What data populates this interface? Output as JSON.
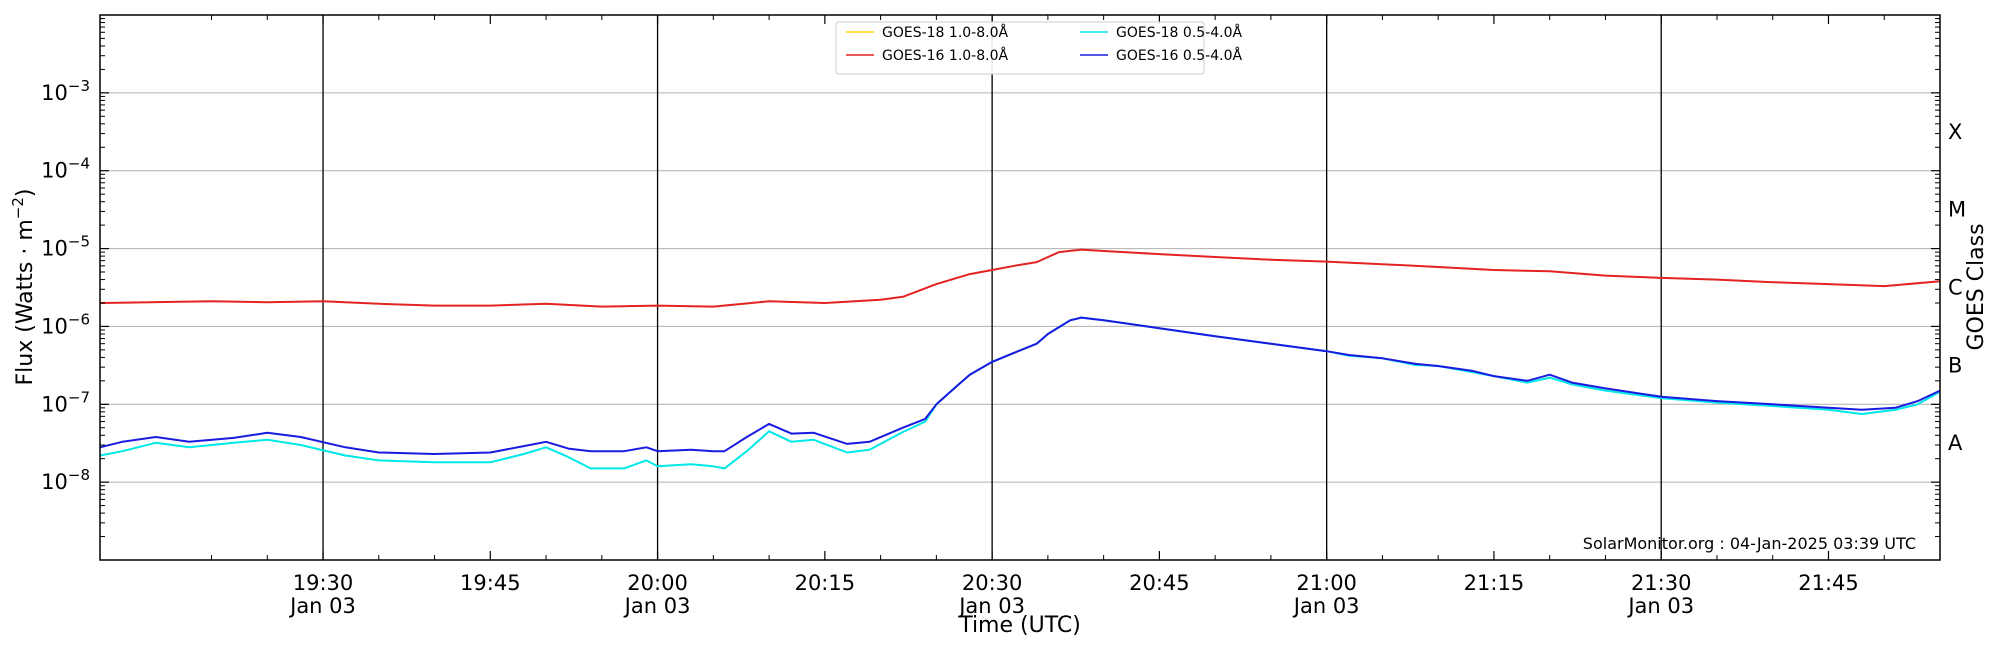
{
  "chart_data": {
    "type": "line",
    "xlabel": "Time (UTC)",
    "ylabel": "Flux (Watts · m",
    "ylabel_exp": "−2",
    "ylabel_end": ")",
    "right_label": "GOES Class",
    "xlim": [
      "19:10",
      "21:55"
    ],
    "ylim": [
      1e-09,
      0.01
    ],
    "yscale": "log",
    "y_ticks": [
      {
        "value": 1e-08,
        "base": "10",
        "exp": "−8"
      },
      {
        "value": 1e-07,
        "base": "10",
        "exp": "−7"
      },
      {
        "value": 1e-06,
        "base": "10",
        "exp": "−6"
      },
      {
        "value": 1e-05,
        "base": "10",
        "exp": "−5"
      },
      {
        "value": 0.0001,
        "base": "10",
        "exp": "−4"
      },
      {
        "value": 0.001,
        "base": "10",
        "exp": "−3"
      }
    ],
    "x_ticks": [
      {
        "time": "19:30",
        "label": "19:30",
        "sub": "Jan 03",
        "major": true
      },
      {
        "time": "19:45",
        "label": "19:45",
        "sub": "",
        "major": false
      },
      {
        "time": "20:00",
        "label": "20:00",
        "sub": "Jan 03",
        "major": true
      },
      {
        "time": "20:15",
        "label": "20:15",
        "sub": "",
        "major": false
      },
      {
        "time": "20:30",
        "label": "20:30",
        "sub": "Jan 03",
        "major": true
      },
      {
        "time": "20:45",
        "label": "20:45",
        "sub": "",
        "major": false
      },
      {
        "time": "21:00",
        "label": "21:00",
        "sub": "Jan 03",
        "major": true
      },
      {
        "time": "21:15",
        "label": "21:15",
        "sub": "",
        "major": false
      },
      {
        "time": "21:30",
        "label": "21:30",
        "sub": "Jan 03",
        "major": true
      },
      {
        "time": "21:45",
        "label": "21:45",
        "sub": "",
        "major": false
      }
    ],
    "goes_classes": [
      {
        "label": "A",
        "value": 3.16e-08
      },
      {
        "label": "B",
        "value": 3.16e-07
      },
      {
        "label": "C",
        "value": 3.16e-06
      },
      {
        "label": "M",
        "value": 3.16e-05
      },
      {
        "label": "X",
        "value": 0.000316
      }
    ],
    "grid": true,
    "legend_position": "top-center",
    "watermark": "SolarMonitor.org : 04-Jan-2025 03:39 UTC",
    "series": [
      {
        "name": "GOES-18 1.0-8.0Å",
        "color": "#ffd700",
        "points": []
      },
      {
        "name": "GOES-16 1.0-8.0Å",
        "color": "#e32222",
        "points": [
          [
            "19:10",
            2e-06
          ],
          [
            "19:20",
            2.1e-06
          ],
          [
            "19:25",
            2.05e-06
          ],
          [
            "19:30",
            2.1e-06
          ],
          [
            "19:35",
            1.95e-06
          ],
          [
            "19:40",
            1.85e-06
          ],
          [
            "19:45",
            1.85e-06
          ],
          [
            "19:50",
            1.95e-06
          ],
          [
            "19:55",
            1.8e-06
          ],
          [
            "20:00",
            1.85e-06
          ],
          [
            "20:05",
            1.8e-06
          ],
          [
            "20:10",
            2.1e-06
          ],
          [
            "20:15",
            2e-06
          ],
          [
            "20:20",
            2.2e-06
          ],
          [
            "20:22",
            2.4e-06
          ],
          [
            "20:25",
            3.5e-06
          ],
          [
            "20:28",
            4.7e-06
          ],
          [
            "20:30",
            5.3e-06
          ],
          [
            "20:32",
            6e-06
          ],
          [
            "20:34",
            6.7e-06
          ],
          [
            "20:36",
            9e-06
          ],
          [
            "20:38",
            9.7e-06
          ],
          [
            "20:40",
            9.3e-06
          ],
          [
            "20:45",
            8.5e-06
          ],
          [
            "20:50",
            7.8e-06
          ],
          [
            "20:55",
            7.2e-06
          ],
          [
            "21:00",
            6.8e-06
          ],
          [
            "21:05",
            6.3e-06
          ],
          [
            "21:10",
            5.8e-06
          ],
          [
            "21:15",
            5.3e-06
          ],
          [
            "21:20",
            5.1e-06
          ],
          [
            "21:25",
            4.5e-06
          ],
          [
            "21:30",
            4.2e-06
          ],
          [
            "21:35",
            4e-06
          ],
          [
            "21:40",
            3.7e-06
          ],
          [
            "21:45",
            3.5e-06
          ],
          [
            "21:50",
            3.3e-06
          ],
          [
            "21:55",
            3.8e-06
          ]
        ]
      },
      {
        "name": "GOES-18 0.5-4.0Å",
        "color": "#00e8e8",
        "points": [
          [
            "19:10",
            2.2e-08
          ],
          [
            "19:12",
            2.5e-08
          ],
          [
            "19:15",
            3.2e-08
          ],
          [
            "19:18",
            2.8e-08
          ],
          [
            "19:22",
            3.2e-08
          ],
          [
            "19:25",
            3.5e-08
          ],
          [
            "19:28",
            3e-08
          ],
          [
            "19:32",
            2.2e-08
          ],
          [
            "19:35",
            1.9e-08
          ],
          [
            "19:40",
            1.8e-08
          ],
          [
            "19:45",
            1.8e-08
          ],
          [
            "19:48",
            2.3e-08
          ],
          [
            "19:50",
            2.8e-08
          ],
          [
            "19:52",
            2.1e-08
          ],
          [
            "19:54",
            1.5e-08
          ],
          [
            "19:57",
            1.5e-08
          ],
          [
            "19:59",
            1.9e-08
          ],
          [
            "20:00",
            1.6e-08
          ],
          [
            "20:03",
            1.7e-08
          ],
          [
            "20:05",
            1.6e-08
          ],
          [
            "20:06",
            1.5e-08
          ],
          [
            "20:08",
            2.5e-08
          ],
          [
            "20:10",
            4.5e-08
          ],
          [
            "20:12",
            3.3e-08
          ],
          [
            "20:14",
            3.5e-08
          ],
          [
            "20:17",
            2.4e-08
          ],
          [
            "20:19",
            2.6e-08
          ],
          [
            "20:22",
            4.4e-08
          ],
          [
            "20:24",
            6e-08
          ],
          [
            "20:25",
            1e-07
          ],
          [
            "20:27",
            1.8e-07
          ],
          [
            "20:28",
            2.4e-07
          ],
          [
            "20:30",
            3.5e-07
          ],
          [
            "20:32",
            4.6e-07
          ],
          [
            "20:34",
            6e-07
          ],
          [
            "20:35",
            8e-07
          ],
          [
            "20:37",
            1.2e-06
          ],
          [
            "20:38",
            1.3e-06
          ],
          [
            "20:40",
            1.2e-06
          ],
          [
            "20:45",
            9.5e-07
          ],
          [
            "20:50",
            7.5e-07
          ],
          [
            "20:55",
            6e-07
          ],
          [
            "21:00",
            4.8e-07
          ],
          [
            "21:02",
            4.2e-07
          ],
          [
            "21:05",
            3.9e-07
          ],
          [
            "21:08",
            3.2e-07
          ],
          [
            "21:10",
            3.1e-07
          ],
          [
            "21:13",
            2.6e-07
          ],
          [
            "21:15",
            2.3e-07
          ],
          [
            "21:18",
            1.9e-07
          ],
          [
            "21:20",
            2.2e-07
          ],
          [
            "21:22",
            1.8e-07
          ],
          [
            "21:25",
            1.5e-07
          ],
          [
            "21:30",
            1.2e-07
          ],
          [
            "21:35",
            1.05e-07
          ],
          [
            "21:40",
            9.5e-08
          ],
          [
            "21:45",
            8.5e-08
          ],
          [
            "21:48",
            7.5e-08
          ],
          [
            "21:51",
            8.5e-08
          ],
          [
            "21:53",
            1e-07
          ],
          [
            "21:55",
            1.45e-07
          ]
        ]
      },
      {
        "name": "GOES-16 0.5-4.0Å",
        "color": "#1a1ae0",
        "points": [
          [
            "19:10",
            2.8e-08
          ],
          [
            "19:12",
            3.3e-08
          ],
          [
            "19:15",
            3.8e-08
          ],
          [
            "19:18",
            3.3e-08
          ],
          [
            "19:22",
            3.7e-08
          ],
          [
            "19:25",
            4.3e-08
          ],
          [
            "19:28",
            3.8e-08
          ],
          [
            "19:32",
            2.8e-08
          ],
          [
            "19:35",
            2.4e-08
          ],
          [
            "19:40",
            2.3e-08
          ],
          [
            "19:45",
            2.4e-08
          ],
          [
            "19:48",
            2.9e-08
          ],
          [
            "19:50",
            3.3e-08
          ],
          [
            "19:52",
            2.7e-08
          ],
          [
            "19:54",
            2.5e-08
          ],
          [
            "19:57",
            2.5e-08
          ],
          [
            "19:59",
            2.8e-08
          ],
          [
            "20:00",
            2.5e-08
          ],
          [
            "20:03",
            2.6e-08
          ],
          [
            "20:05",
            2.5e-08
          ],
          [
            "20:06",
            2.5e-08
          ],
          [
            "20:08",
            3.8e-08
          ],
          [
            "20:10",
            5.6e-08
          ],
          [
            "20:12",
            4.2e-08
          ],
          [
            "20:14",
            4.3e-08
          ],
          [
            "20:17",
            3.1e-08
          ],
          [
            "20:19",
            3.3e-08
          ],
          [
            "20:22",
            5e-08
          ],
          [
            "20:24",
            6.5e-08
          ],
          [
            "20:25",
            1e-07
          ],
          [
            "20:27",
            1.8e-07
          ],
          [
            "20:28",
            2.4e-07
          ],
          [
            "20:30",
            3.5e-07
          ],
          [
            "20:32",
            4.6e-07
          ],
          [
            "20:34",
            6e-07
          ],
          [
            "20:35",
            8e-07
          ],
          [
            "20:37",
            1.2e-06
          ],
          [
            "20:38",
            1.3e-06
          ],
          [
            "20:40",
            1.2e-06
          ],
          [
            "20:45",
            9.5e-07
          ],
          [
            "20:50",
            7.5e-07
          ],
          [
            "20:55",
            6e-07
          ],
          [
            "21:00",
            4.8e-07
          ],
          [
            "21:02",
            4.3e-07
          ],
          [
            "21:05",
            3.9e-07
          ],
          [
            "21:08",
            3.3e-07
          ],
          [
            "21:10",
            3.1e-07
          ],
          [
            "21:13",
            2.7e-07
          ],
          [
            "21:15",
            2.3e-07
          ],
          [
            "21:18",
            2e-07
          ],
          [
            "21:20",
            2.4e-07
          ],
          [
            "21:22",
            1.9e-07
          ],
          [
            "21:25",
            1.6e-07
          ],
          [
            "21:30",
            1.25e-07
          ],
          [
            "21:35",
            1.1e-07
          ],
          [
            "21:40",
            1e-07
          ],
          [
            "21:45",
            9e-08
          ],
          [
            "21:48",
            8.5e-08
          ],
          [
            "21:51",
            9e-08
          ],
          [
            "21:53",
            1.1e-07
          ],
          [
            "21:55",
            1.5e-07
          ]
        ]
      }
    ]
  }
}
